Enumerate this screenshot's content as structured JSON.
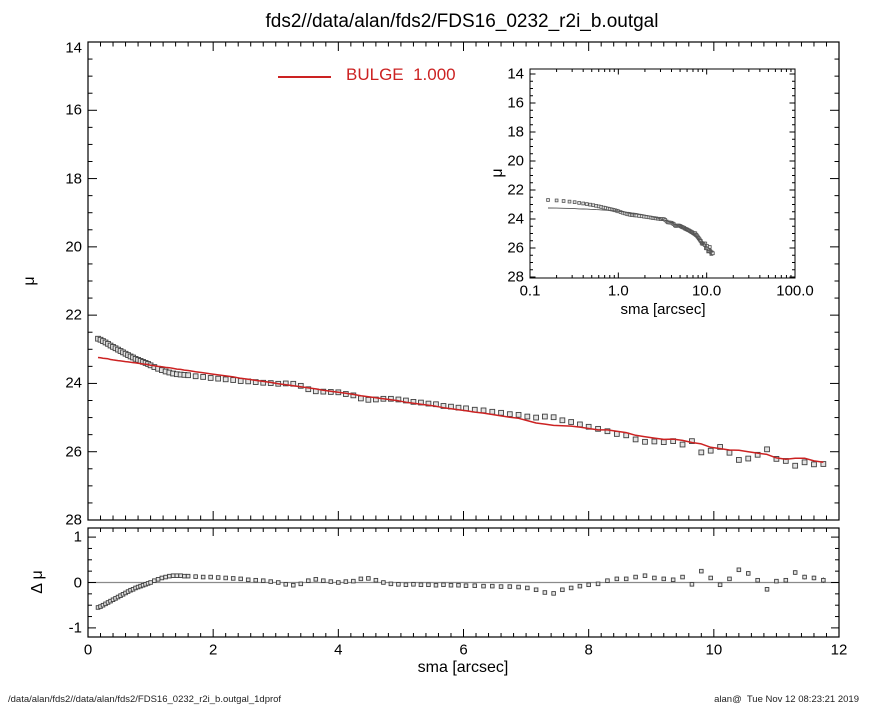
{
  "title": "fds2//data/alan/fds2/FDS16_0232_r2i_b.outgal",
  "legend": {
    "label": "BULGE  1.000",
    "color": "#cc2222"
  },
  "footer": {
    "left": "/data/alan/fds2//data/alan/fds2/FDS16_0232_r2i_b.outgal_1dprof",
    "right": "alan@  Tue Nov 12 08:23:21 2019"
  },
  "colors": {
    "model_line": "#cc2222",
    "data_stroke": "#3f3f3f",
    "data_fill": "#e4e4e4",
    "inset_line": "#555555",
    "zero_line": "#8a8a8a",
    "axis": "#000000",
    "background": "#ffffff"
  },
  "chart_data": {
    "type": "scatter",
    "panels": {
      "main": {
        "xlim": [
          0,
          12
        ],
        "ylim": [
          28,
          14
        ],
        "ylabel": "μ",
        "ytick_values": [
          14,
          16,
          18,
          20,
          22,
          24,
          26,
          28
        ],
        "ytick_labels": [
          "14",
          "16",
          "18",
          "20",
          "22",
          "24",
          "26",
          "28"
        ],
        "x_major_ticks": [
          0,
          2,
          4,
          6,
          8,
          10,
          12
        ],
        "x_tick_labels_shown": false,
        "grid": false
      },
      "inset": {
        "xscale": "log",
        "xlim": [
          0.1,
          100
        ],
        "ylim": [
          28,
          14
        ],
        "xlabel": "sma [arcsec]",
        "ylabel": "μ",
        "xtick_values": [
          0.1,
          1,
          10,
          100
        ],
        "xtick_labels": [
          "0.1",
          "1.0",
          "10.0",
          "100.0"
        ],
        "ytick_values": [
          14,
          16,
          18,
          20,
          22,
          24,
          26,
          28
        ],
        "ytick_labels": [
          "14",
          "16",
          "18",
          "20",
          "22",
          "24",
          "26",
          "28"
        ],
        "grid": false
      },
      "residual": {
        "xlim": [
          0,
          12
        ],
        "ylim": [
          -1,
          1
        ],
        "xlabel": "sma [arcsec]",
        "ylabel": "Δ μ",
        "xtick_values": [
          0,
          2,
          4,
          6,
          8,
          10,
          12
        ],
        "xtick_labels": [
          "0",
          "2",
          "4",
          "6",
          "8",
          "10",
          "12"
        ],
        "ytick_values": [
          1,
          0,
          -1
        ],
        "ytick_labels": [
          "1",
          "0",
          "-1"
        ],
        "zero_line": true,
        "grid": false
      }
    },
    "series": [
      {
        "name": "surface_brightness_profile",
        "type": "scatter",
        "marker": "open-square",
        "sma": [
          0.16,
          0.2,
          0.24,
          0.28,
          0.32,
          0.36,
          0.4,
          0.44,
          0.48,
          0.52,
          0.56,
          0.6,
          0.64,
          0.68,
          0.72,
          0.76,
          0.8,
          0.84,
          0.88,
          0.92,
          0.96,
          1.0,
          1.06,
          1.12,
          1.18,
          1.24,
          1.3,
          1.36,
          1.42,
          1.48,
          1.54,
          1.6,
          1.72,
          1.84,
          1.96,
          2.08,
          2.2,
          2.32,
          2.44,
          2.56,
          2.68,
          2.8,
          2.92,
          3.04,
          3.16,
          3.28,
          3.4,
          3.52,
          3.64,
          3.76,
          3.88,
          4.0,
          4.12,
          4.24,
          4.36,
          4.48,
          4.6,
          4.72,
          4.84,
          4.96,
          5.08,
          5.2,
          5.32,
          5.44,
          5.56,
          5.68,
          5.8,
          5.92,
          6.04,
          6.18,
          6.32,
          6.46,
          6.6,
          6.74,
          6.88,
          7.02,
          7.16,
          7.3,
          7.44,
          7.58,
          7.72,
          7.86,
          8.0,
          8.15,
          8.3,
          8.45,
          8.6,
          8.75,
          8.9,
          9.05,
          9.2,
          9.35,
          9.5,
          9.65,
          9.8,
          9.95,
          10.1,
          10.25,
          10.4,
          10.55,
          10.7,
          10.85,
          11.0,
          11.15,
          11.3,
          11.45,
          11.6,
          11.75
        ],
        "mu": [
          22.69,
          22.72,
          22.76,
          22.8,
          22.84,
          22.89,
          22.93,
          22.97,
          23.01,
          23.05,
          23.09,
          23.13,
          23.17,
          23.21,
          23.24,
          23.28,
          23.31,
          23.34,
          23.37,
          23.4,
          23.43,
          23.47,
          23.52,
          23.57,
          23.61,
          23.65,
          23.68,
          23.71,
          23.73,
          23.74,
          23.75,
          23.76,
          23.79,
          23.81,
          23.84,
          23.86,
          23.88,
          23.9,
          23.93,
          23.94,
          23.96,
          23.98,
          23.99,
          24.01,
          24.0,
          24.01,
          24.07,
          24.17,
          24.23,
          24.24,
          24.25,
          24.26,
          24.31,
          24.35,
          24.44,
          24.48,
          24.47,
          24.45,
          24.45,
          24.47,
          24.5,
          24.54,
          24.56,
          24.59,
          24.61,
          24.66,
          24.68,
          24.71,
          24.73,
          24.77,
          24.79,
          24.83,
          24.86,
          24.9,
          24.92,
          24.97,
          25.0,
          24.97,
          24.99,
          25.08,
          25.13,
          25.2,
          25.27,
          25.33,
          25.4,
          25.48,
          25.52,
          25.64,
          25.71,
          25.7,
          25.72,
          25.69,
          25.79,
          25.69,
          26.02,
          25.97,
          25.86,
          26.03,
          26.24,
          26.2,
          26.09,
          25.93,
          26.21,
          26.27,
          26.41,
          26.31,
          26.37,
          26.36
        ],
        "err": [
          0,
          0,
          0,
          0,
          0,
          0,
          0,
          0,
          0,
          0,
          0,
          0,
          0,
          0,
          0,
          0,
          0,
          0,
          0,
          0,
          0,
          0,
          0,
          0,
          0,
          0,
          0,
          0,
          0,
          0,
          0,
          0,
          0,
          0,
          0,
          0,
          0,
          0,
          0,
          0,
          0,
          0,
          0,
          0,
          0,
          0,
          0,
          0,
          0,
          0,
          0,
          0,
          0,
          0,
          0,
          0,
          0,
          0,
          0,
          0,
          0,
          0,
          0,
          0,
          0,
          0,
          0,
          0,
          0,
          0,
          0,
          0,
          0,
          0,
          0,
          0,
          0,
          0,
          0,
          0,
          0,
          0,
          0,
          0,
          0.02,
          0.02,
          0.02,
          0.02,
          0.02,
          0.02,
          0.02,
          0.02,
          0.02,
          0.02,
          0.04,
          0.04,
          0.04,
          0.04,
          0.05,
          0.05,
          0.04,
          0.05,
          0.04,
          0.04,
          0.05,
          0.05,
          0.05,
          0.06
        ]
      },
      {
        "name": "bulge_model",
        "type": "line",
        "color": "#cc2222",
        "note": "model_mu[i] = mu[i] - dmu[i] at each sma[i]"
      },
      {
        "name": "residual_dmu",
        "type": "scatter",
        "values_are": "data mu minus bulge model mu",
        "dmu": [
          -0.55,
          -0.53,
          -0.5,
          -0.47,
          -0.44,
          -0.41,
          -0.38,
          -0.35,
          -0.32,
          -0.29,
          -0.26,
          -0.23,
          -0.2,
          -0.17,
          -0.15,
          -0.12,
          -0.1,
          -0.08,
          -0.06,
          -0.04,
          -0.02,
          0.0,
          0.04,
          0.07,
          0.1,
          0.12,
          0.14,
          0.15,
          0.15,
          0.15,
          0.14,
          0.14,
          0.13,
          0.12,
          0.12,
          0.11,
          0.1,
          0.09,
          0.08,
          0.06,
          0.05,
          0.04,
          0.02,
          0.0,
          -0.04,
          -0.06,
          -0.03,
          0.04,
          0.07,
          0.04,
          0.02,
          0.0,
          0.02,
          0.03,
          0.08,
          0.09,
          0.05,
          0.0,
          -0.03,
          -0.04,
          -0.05,
          -0.04,
          -0.05,
          -0.05,
          -0.06,
          -0.05,
          -0.06,
          -0.06,
          -0.07,
          -0.07,
          -0.08,
          -0.08,
          -0.09,
          -0.09,
          -0.1,
          -0.12,
          -0.16,
          -0.22,
          -0.24,
          -0.16,
          -0.12,
          -0.08,
          -0.05,
          -0.03,
          0.04,
          0.08,
          0.08,
          0.12,
          0.15,
          0.1,
          0.08,
          0.06,
          0.12,
          -0.04,
          0.25,
          0.1,
          -0.05,
          0.08,
          0.28,
          0.2,
          0.05,
          -0.15,
          0.03,
          0.05,
          0.22,
          0.12,
          0.1,
          0.05
        ]
      }
    ]
  }
}
